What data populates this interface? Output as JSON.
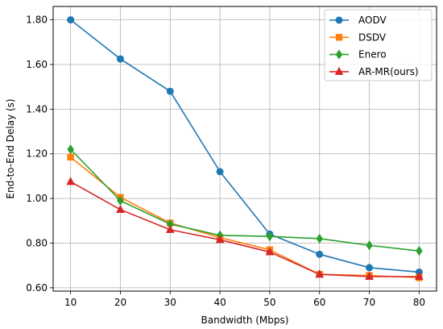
{
  "chart_data": {
    "type": "line",
    "title": "",
    "xlabel": "Bandwidth (Mbps)",
    "ylabel": "End-to-End Delay (s)",
    "x": [
      10,
      20,
      30,
      40,
      50,
      60,
      70,
      80
    ],
    "x_ticks": [
      "10",
      "20",
      "30",
      "40",
      "50",
      "60",
      "70",
      "80"
    ],
    "y_ticks": [
      "0.60",
      "0.80",
      "1.00",
      "1.20",
      "1.40",
      "1.60",
      "1.80"
    ],
    "xlim": [
      6.5,
      83.5
    ],
    "ylim": [
      0.585,
      1.86
    ],
    "grid": true,
    "legend_position": "top-right",
    "series": [
      {
        "name": "AODV",
        "color": "#1f77b4",
        "marker": "circle",
        "values": [
          1.8,
          1.625,
          1.48,
          1.12,
          0.84,
          0.75,
          0.69,
          0.67
        ]
      },
      {
        "name": "DSDV",
        "color": "#ff7f0e",
        "marker": "square",
        "values": [
          1.185,
          1.005,
          0.89,
          0.825,
          0.77,
          0.66,
          0.655,
          0.645
        ]
      },
      {
        "name": "Enero",
        "color": "#2ca02c",
        "marker": "diamond",
        "values": [
          1.22,
          0.99,
          0.885,
          0.835,
          0.83,
          0.82,
          0.79,
          0.765
        ]
      },
      {
        "name": "AR-MR(ours)",
        "color": "#d62728",
        "marker": "triangle",
        "values": [
          1.075,
          0.95,
          0.86,
          0.815,
          0.76,
          0.66,
          0.65,
          0.65
        ]
      }
    ]
  }
}
